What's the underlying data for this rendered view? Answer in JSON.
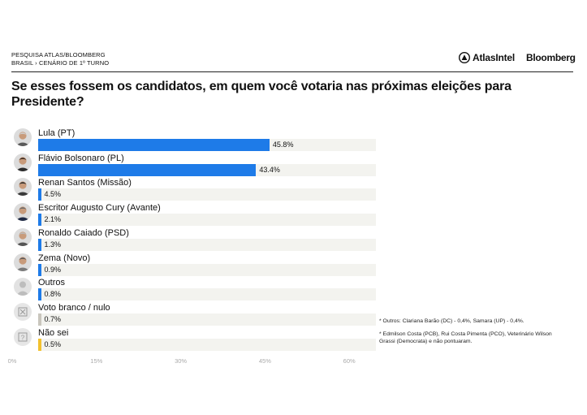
{
  "header": {
    "survey_line1": "PESQUISA ATLAS/BLOOMBERG",
    "survey_line2": "BRASIL › CENÁRIO DE 1º TURNO",
    "logo_atlas": "AtlasIntel",
    "logo_bloomberg": "Bloomberg"
  },
  "title": "Se esses fossem os candidatos, em quem você votaria nas próximas eleições para Presidente?",
  "colors": {
    "blue": "#1e7be8",
    "gray": "#c9c6bd",
    "yellow": "#f2c12e",
    "track": "#f3f3ef"
  },
  "chart_data": {
    "type": "bar",
    "orientation": "horizontal",
    "categories": [
      "Lula (PT)",
      "Flávio Bolsonaro (PL)",
      "Renan Santos (Missão)",
      "Escritor Augusto Cury (Avante)",
      "Ronaldo Caiado (PSD)",
      "Zema (Novo)",
      "Outros",
      "Voto branco / nulo",
      "Não sei"
    ],
    "values": [
      45.8,
      43.4,
      4.5,
      2.1,
      1.3,
      0.9,
      0.8,
      0.7,
      0.5
    ],
    "value_labels": [
      "45.8%",
      "43.4%",
      "4.5%",
      "2.1%",
      "1.3%",
      "0.9%",
      "0.8%",
      "0.7%",
      "0.5%"
    ],
    "bar_colors": [
      "#1e7be8",
      "#1e7be8",
      "#1e7be8",
      "#1e7be8",
      "#1e7be8",
      "#1e7be8",
      "#1e7be8",
      "#c9c6bd",
      "#f2c12e"
    ],
    "avatars": [
      "person-photo",
      "person-photo",
      "person-photo",
      "person-photo",
      "person-photo",
      "person-photo",
      "generic-person-icon",
      "blank-ballot-icon",
      "question-mark-icon"
    ],
    "xlim": [
      0,
      60
    ],
    "x_ticks": [
      0,
      15,
      30,
      45,
      60
    ],
    "x_tick_labels": [
      "0%",
      "15%",
      "30%",
      "45%",
      "60%"
    ],
    "grid": false
  },
  "notes": [
    "* Outros: Clariana Barão (DC) - 0,4%, Samara (UP) - 0,4%.",
    "* Edmilson Costa (PCB), Rui Costa Pimenta (PCO), Veterinário Wilson Grassi (Democrata) e não pontuaram."
  ]
}
